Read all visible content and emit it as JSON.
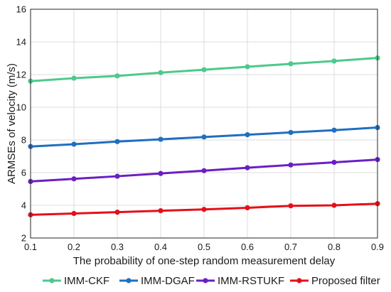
{
  "chart_data": {
    "type": "line",
    "xlabel": "The probability of one-step random measurement delay",
    "ylabel": "ARMSEs of velocity (m/s)",
    "xlim": [
      0.1,
      0.9
    ],
    "ylim": [
      2,
      16
    ],
    "xticks": [
      "0.1",
      "0.2",
      "0.3",
      "0.4",
      "0.5",
      "0.6",
      "0.7",
      "0.8",
      "0.9"
    ],
    "yticks": [
      "2",
      "4",
      "6",
      "8",
      "10",
      "12",
      "14",
      "16"
    ],
    "grid": true,
    "legend_position": "bottom",
    "x": [
      0.1,
      0.2,
      0.3,
      0.4,
      0.5,
      0.6,
      0.7,
      0.8,
      0.9
    ],
    "series": [
      {
        "name": "IMM-CKF",
        "color": "#4dc98c",
        "values": [
          11.6,
          11.78,
          11.92,
          12.12,
          12.3,
          12.48,
          12.66,
          12.83,
          13.02
        ]
      },
      {
        "name": "IMM-DGAF",
        "color": "#1f6fc0",
        "values": [
          7.6,
          7.74,
          7.9,
          8.04,
          8.18,
          8.32,
          8.46,
          8.6,
          8.76
        ]
      },
      {
        "name": "IMM-RSTUKF",
        "color": "#6a1fc2",
        "values": [
          5.46,
          5.62,
          5.78,
          5.95,
          6.12,
          6.3,
          6.47,
          6.63,
          6.8
        ]
      },
      {
        "name": "Proposed filter",
        "color": "#e3101a",
        "values": [
          3.42,
          3.5,
          3.58,
          3.67,
          3.75,
          3.85,
          3.97,
          4.0,
          4.1
        ]
      }
    ]
  }
}
